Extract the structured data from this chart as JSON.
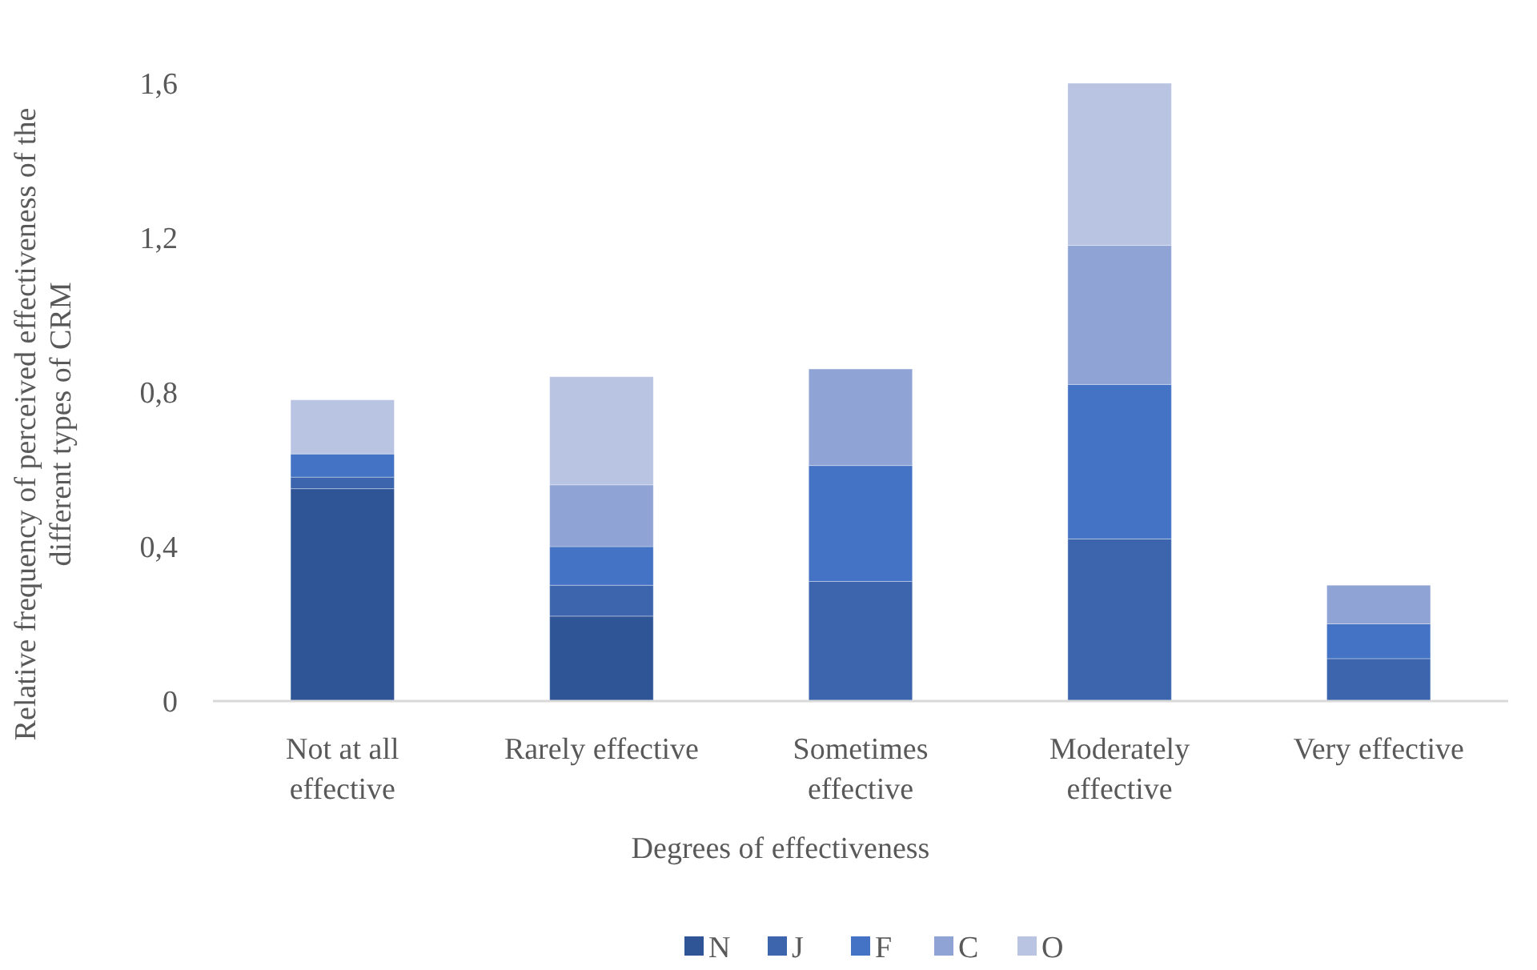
{
  "chart_data": {
    "type": "bar",
    "stacked": true,
    "xlabel": "Degrees of effectiveness",
    "ylabel": "Relative frequency of perceived effectiveness of the different types of CRM",
    "categories": [
      "Not at all effective",
      "Rarely effective",
      "Sometimes effective",
      "Moderately effective",
      "Very effective"
    ],
    "series": [
      {
        "name": "N",
        "color": "#2f5597",
        "values": [
          0.55,
          0.22,
          0,
          0,
          0
        ]
      },
      {
        "name": "J",
        "color": "#3c65ad",
        "values": [
          0.03,
          0.08,
          0.31,
          0.42,
          0.11
        ]
      },
      {
        "name": "F",
        "color": "#4472c4",
        "values": [
          0.06,
          0.1,
          0.3,
          0.4,
          0.09
        ]
      },
      {
        "name": "C",
        "color": "#8fa3d4",
        "values": [
          0,
          0.16,
          0.25,
          0.36,
          0.1
        ]
      },
      {
        "name": "O",
        "color": "#b9c3e2",
        "values": [
          0.14,
          0.28,
          0,
          0.42,
          0
        ]
      }
    ],
    "ylim": [
      0,
      1.6
    ],
    "yticks": [
      0,
      {
        "value": 0.4,
        "label": "0,4"
      },
      {
        "value": 0.8,
        "label": "0,8"
      },
      {
        "value": 1.2,
        "label": "1,2"
      },
      {
        "value": 1.6,
        "label": "1,6"
      }
    ],
    "grid": false,
    "legend": "bottom"
  }
}
